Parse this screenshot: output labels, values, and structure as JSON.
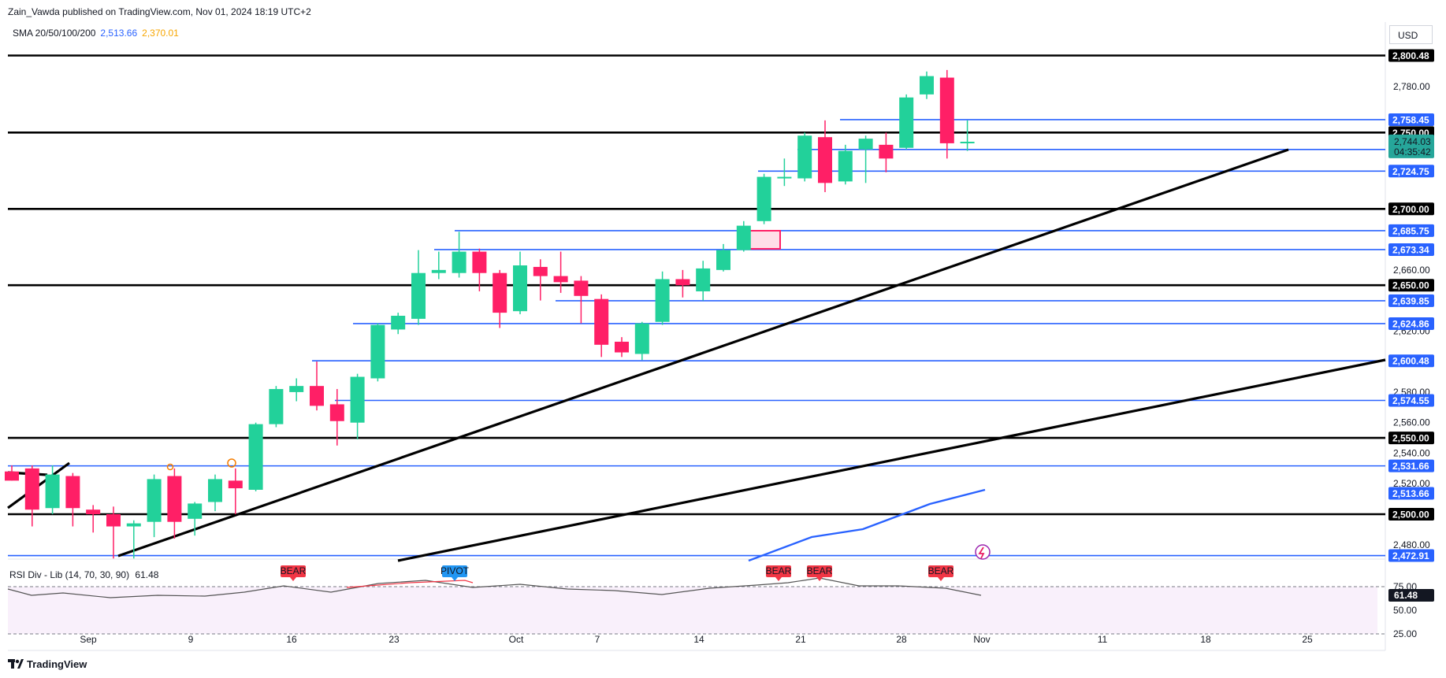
{
  "header": {
    "publisher_line": "Zain_Vawda published on TradingView.com, Nov 01, 2024 18:19 UTC+2"
  },
  "indicators": {
    "sma_label": "SMA 20/50/100/200",
    "sma_value_1": "2,513.66",
    "sma_value_2": "2,370.01",
    "rsi_label": "RSI Div - Lib (14, 70, 30, 90)",
    "rsi_value": "61.48"
  },
  "currency": "USD",
  "footer": {
    "logo_text": "TradingView"
  },
  "colors": {
    "bull": "#22d19a",
    "bear": "#ff1f66",
    "blue_line": "#2962ff",
    "black_line": "#000000",
    "price_tag": "#26a69a"
  },
  "chart_data": {
    "type": "candlestick",
    "x_tick_labels": [
      "Sep",
      "9",
      "16",
      "23",
      "Oct",
      "7",
      "14",
      "21",
      "28",
      "Nov",
      "11",
      "18",
      "25"
    ],
    "y_tick_labels": [
      "2,780.00",
      "2,660.00",
      "2,620.00",
      "2,580.00",
      "2,560.00",
      "2,540.00",
      "2,520.00",
      "2,480.00"
    ],
    "black_levels": [
      {
        "label": "2,800.48",
        "value": 2800.48
      },
      {
        "label": "2,750.00",
        "value": 2750.0
      },
      {
        "label": "2,700.00",
        "value": 2700.0
      },
      {
        "label": "2,650.00",
        "value": 2650.0
      },
      {
        "label": "2,550.00",
        "value": 2550.0
      },
      {
        "label": "2,500.00",
        "value": 2500.0
      }
    ],
    "blue_levels": [
      {
        "label": "2,758.45",
        "value": 2758.45
      },
      {
        "label": "2,738.93",
        "value": 2738.93
      },
      {
        "label": "2,724.75",
        "value": 2724.75
      },
      {
        "label": "2,685.75",
        "value": 2685.75
      },
      {
        "label": "2,673.34",
        "value": 2673.34
      },
      {
        "label": "2,639.85",
        "value": 2639.85
      },
      {
        "label": "2,624.86",
        "value": 2624.86
      },
      {
        "label": "2,600.48",
        "value": 2600.48
      },
      {
        "label": "2,574.55",
        "value": 2574.55
      },
      {
        "label": "2,531.66",
        "value": 2531.66
      },
      {
        "label": "2,513.66",
        "value": 2513.66
      },
      {
        "label": "2,472.91",
        "value": 2472.91
      }
    ],
    "current_price": {
      "label": "2,744.03",
      "countdown": "04:35:42",
      "value": 2744.03
    },
    "candles": [
      {
        "i": 0,
        "o": 2528,
        "h": 2532,
        "l": 2522,
        "c": 2522
      },
      {
        "i": 1,
        "o": 2530,
        "h": 2532,
        "l": 2492,
        "c": 2503
      },
      {
        "i": 2,
        "o": 2504,
        "h": 2532,
        "l": 2500,
        "c": 2526
      },
      {
        "i": 3,
        "o": 2525,
        "h": 2527,
        "l": 2492,
        "c": 2504
      },
      {
        "i": 4,
        "o": 2503,
        "h": 2506,
        "l": 2488,
        "c": 2500
      },
      {
        "i": 5,
        "o": 2500,
        "h": 2505,
        "l": 2471,
        "c": 2492
      },
      {
        "i": 6,
        "o": 2492,
        "h": 2496,
        "l": 2471,
        "c": 2494
      },
      {
        "i": 7,
        "o": 2495,
        "h": 2526,
        "l": 2485,
        "c": 2523
      },
      {
        "i": 8,
        "o": 2525,
        "h": 2530,
        "l": 2484,
        "c": 2495
      },
      {
        "i": 9,
        "o": 2497,
        "h": 2508,
        "l": 2486,
        "c": 2507
      },
      {
        "i": 10,
        "o": 2508,
        "h": 2526,
        "l": 2502,
        "c": 2523
      },
      {
        "i": 11,
        "o": 2522,
        "h": 2530,
        "l": 2500,
        "c": 2517
      },
      {
        "i": 12,
        "o": 2516,
        "h": 2560,
        "l": 2515,
        "c": 2559
      },
      {
        "i": 13,
        "o": 2559,
        "h": 2584,
        "l": 2557,
        "c": 2582
      },
      {
        "i": 14,
        "o": 2580,
        "h": 2589,
        "l": 2574,
        "c": 2584
      },
      {
        "i": 15,
        "o": 2584,
        "h": 2600,
        "l": 2568,
        "c": 2571
      },
      {
        "i": 16,
        "o": 2572,
        "h": 2582,
        "l": 2545,
        "c": 2561
      },
      {
        "i": 17,
        "o": 2560,
        "h": 2592,
        "l": 2549,
        "c": 2590
      },
      {
        "i": 18,
        "o": 2589,
        "h": 2625,
        "l": 2587,
        "c": 2624
      },
      {
        "i": 19,
        "o": 2621,
        "h": 2632,
        "l": 2618,
        "c": 2630
      },
      {
        "i": 20,
        "o": 2628,
        "h": 2673,
        "l": 2624,
        "c": 2658
      },
      {
        "i": 21,
        "o": 2658,
        "h": 2672,
        "l": 2654,
        "c": 2660
      },
      {
        "i": 22,
        "o": 2658,
        "h": 2685,
        "l": 2655,
        "c": 2672
      },
      {
        "i": 23,
        "o": 2672,
        "h": 2674,
        "l": 2646,
        "c": 2658
      },
      {
        "i": 24,
        "o": 2658,
        "h": 2660,
        "l": 2622,
        "c": 2632
      },
      {
        "i": 25,
        "o": 2633,
        "h": 2672,
        "l": 2631,
        "c": 2663
      },
      {
        "i": 26,
        "o": 2662,
        "h": 2667,
        "l": 2640,
        "c": 2656
      },
      {
        "i": 27,
        "o": 2656,
        "h": 2672,
        "l": 2645,
        "c": 2652
      },
      {
        "i": 28,
        "o": 2653,
        "h": 2656,
        "l": 2625,
        "c": 2643
      },
      {
        "i": 29,
        "o": 2641,
        "h": 2644,
        "l": 2603,
        "c": 2611
      },
      {
        "i": 30,
        "o": 2613,
        "h": 2616,
        "l": 2603,
        "c": 2606
      },
      {
        "i": 31,
        "o": 2605,
        "h": 2626,
        "l": 2601,
        "c": 2625
      },
      {
        "i": 32,
        "o": 2626,
        "h": 2659,
        "l": 2624,
        "c": 2654
      },
      {
        "i": 33,
        "o": 2654,
        "h": 2660,
        "l": 2642,
        "c": 2650
      },
      {
        "i": 34,
        "o": 2646,
        "h": 2666,
        "l": 2640,
        "c": 2661
      },
      {
        "i": 35,
        "o": 2660,
        "h": 2677,
        "l": 2659,
        "c": 2673
      },
      {
        "i": 36,
        "o": 2673,
        "h": 2692,
        "l": 2672,
        "c": 2689
      },
      {
        "i": 37,
        "o": 2692,
        "h": 2723,
        "l": 2690,
        "c": 2721
      },
      {
        "i": 38,
        "o": 2720,
        "h": 2733,
        "l": 2715,
        "c": 2721
      },
      {
        "i": 39,
        "o": 2720,
        "h": 2750,
        "l": 2718,
        "c": 2748
      },
      {
        "i": 40,
        "o": 2747,
        "h": 2758,
        "l": 2711,
        "c": 2717
      },
      {
        "i": 41,
        "o": 2718,
        "h": 2742,
        "l": 2716,
        "c": 2738
      },
      {
        "i": 42,
        "o": 2739,
        "h": 2748,
        "l": 2717,
        "c": 2746
      },
      {
        "i": 43,
        "o": 2742,
        "h": 2750,
        "l": 2724,
        "c": 2733
      },
      {
        "i": 44,
        "o": 2740,
        "h": 2775,
        "l": 2739,
        "c": 2773
      },
      {
        "i": 45,
        "o": 2775,
        "h": 2790,
        "l": 2772,
        "c": 2787
      },
      {
        "i": 46,
        "o": 2786,
        "h": 2791,
        "l": 2733,
        "c": 2743
      },
      {
        "i": 47,
        "o": 2743,
        "h": 2758,
        "l": 2738,
        "c": 2744
      }
    ],
    "rsi": {
      "axis_labels": [
        "75.00",
        "50.00",
        "25.00"
      ],
      "annotations": [
        "BEAR",
        "PIVOT",
        "BEAR",
        "BEAR",
        "BEAR"
      ]
    }
  }
}
